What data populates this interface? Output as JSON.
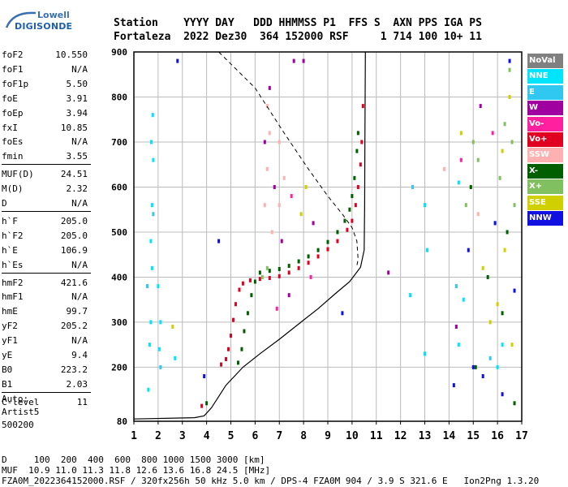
{
  "logo": {
    "line1": "Lowell",
    "line2": "DIGISONDE"
  },
  "header": {
    "labels": "Station    YYYY DAY   DDD HHMMSS P1  FFS S  AXN PPS IGA PS",
    "values": "Fortaleza  2022 Dez30  364 152000 RSF     1 714 100 10+ 11"
  },
  "params": [
    {
      "label": "foF2",
      "value": "10.550"
    },
    {
      "label": "foF1",
      "value": "N/A"
    },
    {
      "label": "foF1p",
      "value": "5.50"
    },
    {
      "label": "foE",
      "value": "3.91"
    },
    {
      "label": "foEp",
      "value": "3.94"
    },
    {
      "label": "fxI",
      "value": "10.85"
    },
    {
      "label": "foEs",
      "value": "N/A"
    },
    {
      "label": "fmin",
      "value": "3.55"
    },
    {
      "label": "MUF(D)",
      "value": "24.51"
    },
    {
      "label": "M(D)",
      "value": "2.32"
    },
    {
      "label": "D",
      "value": "N/A"
    },
    {
      "label": "h`F",
      "value": "205.0"
    },
    {
      "label": "h`F2",
      "value": "205.0"
    },
    {
      "label": "h`E",
      "value": "106.9"
    },
    {
      "label": "h`Es",
      "value": "N/A"
    },
    {
      "label": "hmF2",
      "value": "421.6"
    },
    {
      "label": "hmF1",
      "value": "N/A"
    },
    {
      "label": "hmE",
      "value": "99.7"
    },
    {
      "label": "yF2",
      "value": "205.2"
    },
    {
      "label": "yF1",
      "value": "N/A"
    },
    {
      "label": "yE",
      "value": "9.4"
    },
    {
      "label": "B0",
      "value": "223.2"
    },
    {
      "label": "B1",
      "value": "2.03"
    },
    {
      "label": "C-level",
      "value": "11"
    }
  ],
  "auto": {
    "line1": "Auto:",
    "line2": "Artist5",
    "line3": "500200"
  },
  "footer": {
    "line1": "D     100  200  400  600  800 1000 1500 3000 [km]",
    "line2": "MUF  10.9 11.0 11.3 11.8 12.6 13.6 16.8 24.5 [MHz]",
    "line3": "FZA0M_2022364152000.RSF / 320fx256h 50 kHz 5.0 km / DPS-4 FZA0M 904 / 3.9 S 321.6 E   Ion2Png 1.3.20"
  },
  "legend": [
    {
      "label": "NoVal",
      "color": "#808080",
      "text": "#ffffff"
    },
    {
      "label": "NNE",
      "color": "#00e5ff",
      "text": "#ffffff"
    },
    {
      "label": "E",
      "color": "#30c8f0",
      "text": "#ffffff"
    },
    {
      "label": "W",
      "color": "#a000a0",
      "text": "#ffffff"
    },
    {
      "label": "Vo-",
      "color": "#ff20a0",
      "text": "#ffffff"
    },
    {
      "label": "Vo+",
      "color": "#e00020",
      "text": "#ffffff"
    },
    {
      "label": "SSW",
      "color": "#ffb0b0",
      "text": "#ffffff"
    },
    {
      "label": "X-",
      "color": "#006000",
      "text": "#ffffff"
    },
    {
      "label": "X+",
      "color": "#80c060",
      "text": "#ffffff"
    },
    {
      "label": "SSE",
      "color": "#d0d000",
      "text": "#ffffff"
    },
    {
      "label": "NNW",
      "color": "#1010e0",
      "text": "#ffffff"
    }
  ],
  "chart_data": {
    "type": "scatter",
    "title": "",
    "xlabel": "",
    "ylabel": "",
    "xlim": [
      1,
      17
    ],
    "ylim": [
      80,
      900
    ],
    "xticks": [
      "1",
      "2",
      "3",
      "4",
      "5",
      "6",
      "7",
      "8",
      "9",
      "10",
      "11",
      "12",
      "13",
      "14",
      "15",
      "16",
      "17"
    ],
    "yticks": [
      "80",
      "200",
      "300",
      "400",
      "500",
      "600",
      "700",
      "800",
      "900"
    ],
    "grid": true,
    "series": [
      {
        "colorKey": "Vo+",
        "points": [
          [
            3.8,
            114
          ],
          [
            4.6,
            206
          ],
          [
            4.8,
            218
          ],
          [
            4.9,
            240
          ],
          [
            5.0,
            270
          ],
          [
            5.1,
            305
          ],
          [
            5.2,
            340
          ],
          [
            5.35,
            372
          ],
          [
            5.5,
            386
          ],
          [
            5.8,
            393
          ],
          [
            6.2,
            396
          ],
          [
            6.6,
            398
          ],
          [
            7.0,
            402
          ],
          [
            7.4,
            410
          ],
          [
            7.8,
            420
          ],
          [
            8.2,
            432
          ],
          [
            8.6,
            446
          ],
          [
            9.0,
            462
          ],
          [
            9.4,
            480
          ],
          [
            9.8,
            505
          ],
          [
            10.0,
            525
          ],
          [
            10.15,
            560
          ],
          [
            10.25,
            600
          ],
          [
            10.35,
            650
          ],
          [
            10.4,
            700
          ],
          [
            10.45,
            780
          ]
        ]
      },
      {
        "colorKey": "X-",
        "points": [
          [
            4.0,
            120
          ],
          [
            5.3,
            210
          ],
          [
            5.45,
            240
          ],
          [
            5.55,
            280
          ],
          [
            5.7,
            320
          ],
          [
            5.85,
            360
          ],
          [
            6.0,
            390
          ],
          [
            6.2,
            410
          ],
          [
            6.6,
            414
          ],
          [
            7.0,
            418
          ],
          [
            7.4,
            425
          ],
          [
            7.8,
            435
          ],
          [
            8.2,
            446
          ],
          [
            8.6,
            460
          ],
          [
            9.0,
            478
          ],
          [
            9.4,
            500
          ],
          [
            9.7,
            525
          ],
          [
            9.9,
            550
          ],
          [
            10.0,
            580
          ],
          [
            10.1,
            620
          ],
          [
            10.2,
            680
          ],
          [
            10.25,
            720
          ]
        ]
      },
      {
        "colorKey": "NNE",
        "points": [
          [
            1.6,
            150
          ],
          [
            1.65,
            250
          ],
          [
            1.7,
            300
          ],
          [
            1.75,
            420
          ],
          [
            1.7,
            480
          ],
          [
            1.75,
            560
          ],
          [
            1.8,
            660
          ],
          [
            1.72,
            700
          ],
          [
            1.78,
            760
          ],
          [
            2.05,
            240
          ],
          [
            2.1,
            300
          ],
          [
            2.0,
            380
          ],
          [
            2.7,
            220
          ],
          [
            12.4,
            360
          ],
          [
            13.0,
            230
          ],
          [
            13.1,
            460
          ],
          [
            13.0,
            560
          ],
          [
            14.4,
            250
          ],
          [
            14.4,
            610
          ],
          [
            14.6,
            350
          ],
          [
            16.0,
            200
          ],
          [
            16.2,
            250
          ]
        ]
      },
      {
        "colorKey": "X+",
        "points": [
          [
            6.3,
            400
          ],
          [
            6.5,
            420
          ],
          [
            14.7,
            560
          ],
          [
            14.9,
            600
          ],
          [
            15.0,
            700
          ],
          [
            15.2,
            660
          ],
          [
            15.9,
            520
          ],
          [
            16.1,
            620
          ],
          [
            16.3,
            740
          ],
          [
            16.5,
            860
          ],
          [
            16.6,
            700
          ],
          [
            16.7,
            560
          ]
        ]
      },
      {
        "colorKey": "SSE",
        "points": [
          [
            14.5,
            720
          ],
          [
            15.4,
            420
          ],
          [
            15.7,
            300
          ],
          [
            16.0,
            340
          ],
          [
            16.2,
            680
          ],
          [
            16.3,
            460
          ],
          [
            16.5,
            800
          ],
          [
            16.6,
            250
          ],
          [
            2.6,
            290
          ],
          [
            7.9,
            540
          ],
          [
            8.1,
            600
          ]
        ]
      },
      {
        "colorKey": "W",
        "points": [
          [
            6.4,
            700
          ],
          [
            6.6,
            820
          ],
          [
            6.8,
            600
          ],
          [
            7.1,
            480
          ],
          [
            7.4,
            360
          ],
          [
            7.6,
            880
          ],
          [
            8.0,
            880
          ],
          [
            8.4,
            520
          ],
          [
            11.5,
            410
          ],
          [
            14.3,
            290
          ],
          [
            15.3,
            780
          ]
        ]
      },
      {
        "colorKey": "SSW",
        "points": [
          [
            6.4,
            560
          ],
          [
            6.5,
            640
          ],
          [
            6.6,
            720
          ],
          [
            6.5,
            780
          ],
          [
            6.7,
            500
          ],
          [
            7.0,
            560
          ],
          [
            7.2,
            620
          ],
          [
            7.0,
            700
          ],
          [
            13.8,
            640
          ],
          [
            15.2,
            540
          ]
        ]
      },
      {
        "colorKey": "NNW",
        "points": [
          [
            3.9,
            180
          ],
          [
            2.8,
            880
          ],
          [
            4.5,
            480
          ],
          [
            9.6,
            320
          ],
          [
            14.2,
            160
          ],
          [
            14.8,
            460
          ],
          [
            15.0,
            200
          ],
          [
            15.4,
            180
          ],
          [
            15.9,
            520
          ],
          [
            16.2,
            140
          ],
          [
            16.5,
            880
          ],
          [
            16.7,
            370
          ]
        ]
      },
      {
        "colorKey": "Vo-",
        "points": [
          [
            6.9,
            330
          ],
          [
            7.5,
            580
          ],
          [
            8.3,
            400
          ],
          [
            14.5,
            660
          ],
          [
            15.8,
            720
          ]
        ]
      },
      {
        "colorKey": "E",
        "points": [
          [
            1.55,
            380
          ],
          [
            1.8,
            540
          ],
          [
            2.1,
            200
          ],
          [
            12.5,
            600
          ],
          [
            14.3,
            380
          ],
          [
            15.7,
            220
          ]
        ]
      },
      {
        "colorKey": "X-",
        "points": [
          [
            14.9,
            600
          ],
          [
            15.1,
            200
          ],
          [
            15.6,
            400
          ],
          [
            16.2,
            320
          ],
          [
            16.4,
            500
          ],
          [
            16.7,
            120
          ]
        ]
      }
    ],
    "profile_solid": [
      [
        1.0,
        85
      ],
      [
        3.5,
        88
      ],
      [
        3.9,
        92
      ],
      [
        4.2,
        110
      ],
      [
        4.8,
        160
      ],
      [
        5.5,
        200
      ],
      [
        6.2,
        230
      ],
      [
        7.0,
        262
      ],
      [
        7.8,
        296
      ],
      [
        8.6,
        330
      ],
      [
        9.3,
        363
      ],
      [
        9.9,
        390
      ],
      [
        10.35,
        422
      ],
      [
        10.5,
        460
      ],
      [
        10.52,
        560
      ],
      [
        10.53,
        700
      ],
      [
        10.55,
        900
      ]
    ],
    "profile_dashed": [
      [
        4.5,
        900
      ],
      [
        6.0,
        820
      ],
      [
        7.2,
        720
      ],
      [
        8.2,
        640
      ],
      [
        9.0,
        580
      ],
      [
        9.6,
        540
      ],
      [
        10.0,
        510
      ],
      [
        10.2,
        480
      ],
      [
        10.25,
        440
      ],
      [
        10.2,
        425
      ]
    ]
  }
}
